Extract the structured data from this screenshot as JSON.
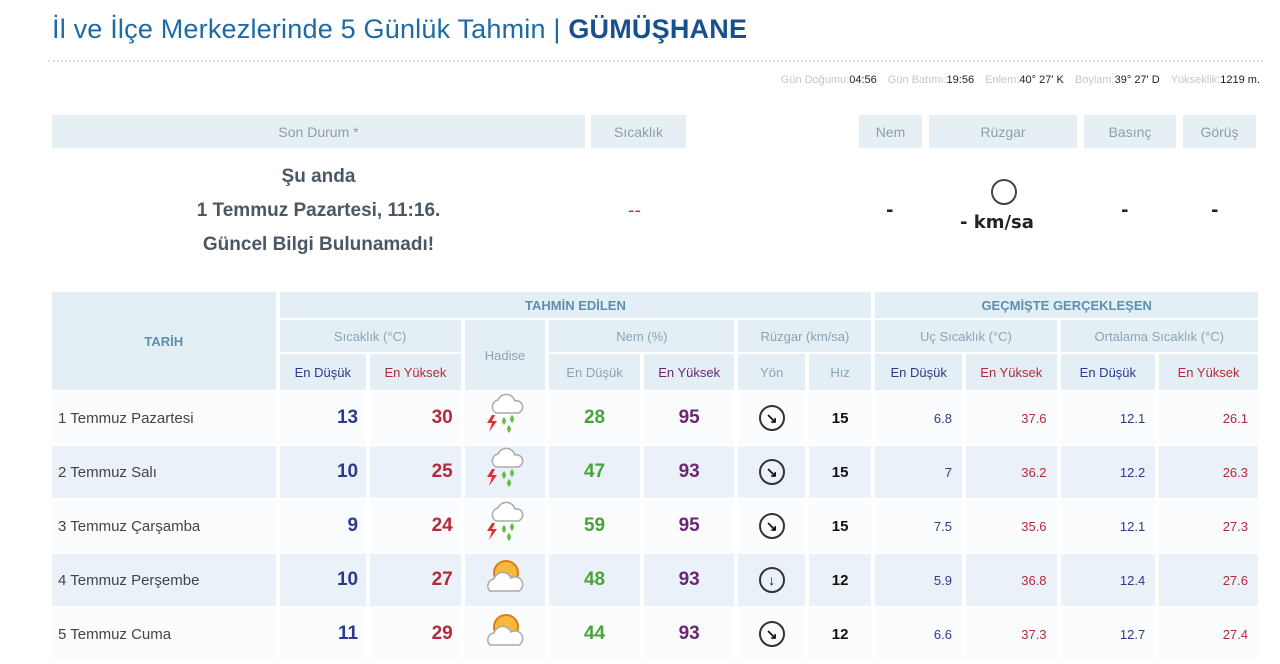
{
  "title": {
    "prefix": "İl ve İlçe Merkezlerinde 5 Günlük Tahmin | ",
    "city": "GÜMÜŞHANE"
  },
  "info": {
    "sunrise_label": "Gün Doğumu:",
    "sunrise": "04:56",
    "sunset_label": "Gün Batımı:",
    "sunset": "19:56",
    "lat_label": "Enlem:",
    "lat": "40° 27' K",
    "lon_label": "Boylam:",
    "lon": "39° 27' D",
    "alt_label": "Yükseklik:",
    "alt": "1219 m."
  },
  "current": {
    "headers": {
      "son_durum": "Son Durum *",
      "sicaklik": "Sıcaklık",
      "nem": "Nem",
      "ruzgar": "Rüzgar",
      "basinc": "Basınç",
      "gorus": "Görüş"
    },
    "line1": "Şu anda",
    "line2": "1 Temmuz Pazartesi, 11:16.",
    "line3": "Güncel Bilgi Bulunamadı!",
    "sicaklik": "--",
    "nem": "-",
    "ruzgar": "- km/sa",
    "basinc": "-",
    "gorus": "-"
  },
  "table": {
    "tarih": "TARİH",
    "tahmin": "TAHMİN EDİLEN",
    "gecmis": "GEÇMİŞTE GERÇEKLEŞEN",
    "sicaklik": "Sıcaklık (°C)",
    "hadise": "Hadise",
    "nem": "Nem (%)",
    "ruzgar": "Rüzgar (km/sa)",
    "uc": "Uç Sıcaklık (°C)",
    "ort": "Ortalama Sıcaklık (°C)",
    "en_dusuk": "En Düşük",
    "en_yuksek": "En Yüksek",
    "yon": "Yön",
    "hiz": "Hız",
    "rows": [
      {
        "date": "1 Temmuz Pazartesi",
        "min": "13",
        "max": "30",
        "hadise": "thunderstorm-rain-icon",
        "nem_min": "28",
        "nem_max": "95",
        "yon": "↘",
        "hiz": "15",
        "uc_min": "6.8",
        "uc_max": "37.6",
        "ort_min": "12.1",
        "ort_max": "26.1"
      },
      {
        "date": "2 Temmuz Salı",
        "min": "10",
        "max": "25",
        "hadise": "thunderstorm-rain-icon",
        "nem_min": "47",
        "nem_max": "93",
        "yon": "↘",
        "hiz": "15",
        "uc_min": "7",
        "uc_max": "36.2",
        "ort_min": "12.2",
        "ort_max": "26.3"
      },
      {
        "date": "3 Temmuz Çarşamba",
        "min": "9",
        "max": "24",
        "hadise": "thunderstorm-rain-icon",
        "nem_min": "59",
        "nem_max": "95",
        "yon": "↘",
        "hiz": "15",
        "uc_min": "7.5",
        "uc_max": "35.6",
        "ort_min": "12.1",
        "ort_max": "27.3"
      },
      {
        "date": "4 Temmuz Perşembe",
        "min": "10",
        "max": "27",
        "hadise": "partly-cloudy-icon",
        "nem_min": "48",
        "nem_max": "93",
        "yon": "↓",
        "hiz": "12",
        "uc_min": "5.9",
        "uc_max": "36.8",
        "ort_min": "12.4",
        "ort_max": "27.6"
      },
      {
        "date": "5 Temmuz Cuma",
        "min": "11",
        "max": "29",
        "hadise": "partly-cloudy-icon",
        "nem_min": "44",
        "nem_max": "93",
        "yon": "↘",
        "hiz": "12",
        "uc_min": "6.6",
        "uc_max": "37.3",
        "ort_min": "12.7",
        "ort_max": "27.4"
      }
    ]
  }
}
